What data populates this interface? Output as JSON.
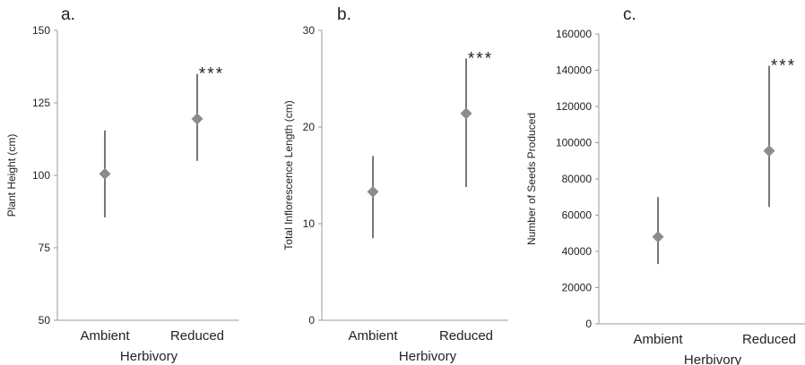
{
  "style": {
    "marker_color": "#8c8c8c",
    "errorbar_color": "#555555",
    "axis_color": "#9a9a9a"
  },
  "chart_data": [
    {
      "type": "scatter",
      "panel_label": "a.",
      "xlabel": "Herbivory",
      "ylabel": "Plant Height (cm)",
      "categories": [
        "Ambient",
        "Reduced"
      ],
      "ylim": [
        50,
        150
      ],
      "yticks": [
        "50",
        "75",
        "100",
        "125",
        "150"
      ],
      "values": [
        100.5,
        119.5
      ],
      "err_low": [
        85.5,
        105
      ],
      "err_high": [
        115.5,
        135
      ],
      "significance": [
        "",
        "***"
      ],
      "grid": false,
      "legend": "none"
    },
    {
      "type": "scatter",
      "panel_label": "b.",
      "xlabel": "Herbivory",
      "ylabel": "Total Inflorescence Length (cm)",
      "categories": [
        "Ambient",
        "Reduced"
      ],
      "ylim": [
        0,
        30
      ],
      "yticks": [
        "0",
        "10",
        "20",
        "30"
      ],
      "values": [
        13.3,
        21.4
      ],
      "err_low": [
        8.5,
        13.8
      ],
      "err_high": [
        17,
        27.1
      ],
      "significance": [
        "",
        "***"
      ],
      "grid": false,
      "legend": "none"
    },
    {
      "type": "scatter",
      "panel_label": "c.",
      "xlabel": "Herbivory",
      "ylabel": "Number of Seeds Produced",
      "categories": [
        "Ambient",
        "Reduced"
      ],
      "ylim": [
        0,
        160000
      ],
      "yticks": [
        "0",
        "20000",
        "40000",
        "60000",
        "80000",
        "100000",
        "120000",
        "140000",
        "160000"
      ],
      "values": [
        48000,
        95500
      ],
      "err_low": [
        33000,
        64500
      ],
      "err_high": [
        70000,
        142500
      ],
      "significance": [
        "",
        "***"
      ],
      "grid": false,
      "legend": "none"
    }
  ]
}
